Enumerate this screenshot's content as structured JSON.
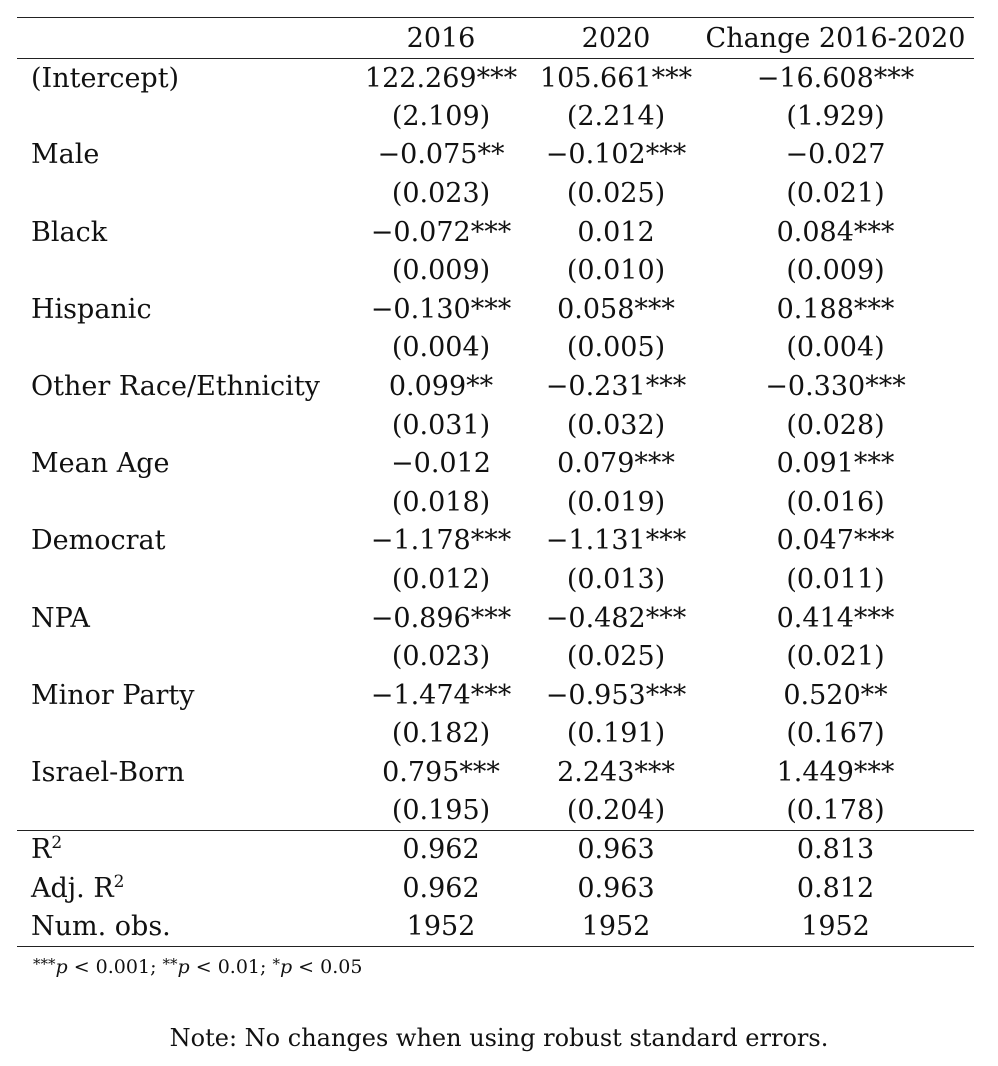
{
  "table": {
    "columns": [
      "",
      "2016",
      "2020",
      "Change 2016-2020"
    ],
    "rows": [
      {
        "label": "(Intercept)",
        "coef": [
          "122.269***",
          "105.661***",
          "−16.608***"
        ],
        "se": [
          "(2.109)",
          "(2.214)",
          "(1.929)"
        ]
      },
      {
        "label": "Male",
        "coef": [
          "−0.075**",
          "−0.102***",
          "−0.027"
        ],
        "se": [
          "(0.023)",
          "(0.025)",
          "(0.021)"
        ]
      },
      {
        "label": "Black",
        "coef": [
          "−0.072***",
          "0.012",
          "0.084***"
        ],
        "se": [
          "(0.009)",
          "(0.010)",
          "(0.009)"
        ]
      },
      {
        "label": "Hispanic",
        "coef": [
          "−0.130***",
          "0.058***",
          "0.188***"
        ],
        "se": [
          "(0.004)",
          "(0.005)",
          "(0.004)"
        ]
      },
      {
        "label": "Other Race/Ethnicity",
        "coef": [
          "0.099**",
          "−0.231***",
          "−0.330***"
        ],
        "se": [
          "(0.031)",
          "(0.032)",
          "(0.028)"
        ]
      },
      {
        "label": "Mean Age",
        "coef": [
          "−0.012",
          "0.079***",
          "0.091***"
        ],
        "se": [
          "(0.018)",
          "(0.019)",
          "(0.016)"
        ]
      },
      {
        "label": "Democrat",
        "coef": [
          "−1.178***",
          "−1.131***",
          "0.047***"
        ],
        "se": [
          "(0.012)",
          "(0.013)",
          "(0.011)"
        ]
      },
      {
        "label": "NPA",
        "coef": [
          "−0.896***",
          "−0.482***",
          "0.414***"
        ],
        "se": [
          "(0.023)",
          "(0.025)",
          "(0.021)"
        ]
      },
      {
        "label": "Minor Party",
        "coef": [
          "−1.474***",
          "−0.953***",
          "0.520**"
        ],
        "se": [
          "(0.182)",
          "(0.191)",
          "(0.167)"
        ]
      },
      {
        "label": "Israel-Born",
        "coef": [
          "0.795***",
          "2.243***",
          "1.449***"
        ],
        "se": [
          "(0.195)",
          "(0.204)",
          "(0.178)"
        ]
      }
    ],
    "stats": [
      {
        "label": "R",
        "sup": "2",
        "values": [
          "0.962",
          "0.963",
          "0.813"
        ]
      },
      {
        "label": "Adj. R",
        "sup": "2",
        "values": [
          "0.962",
          "0.963",
          "0.812"
        ]
      },
      {
        "label": "Num. obs.",
        "sup": "",
        "values": [
          "1952",
          "1952",
          "1952"
        ]
      }
    ]
  },
  "significance_note": "***p < 0.001; **p < 0.01; *p < 0.05",
  "robust_note": "Note: No changes when using robust standard errors."
}
